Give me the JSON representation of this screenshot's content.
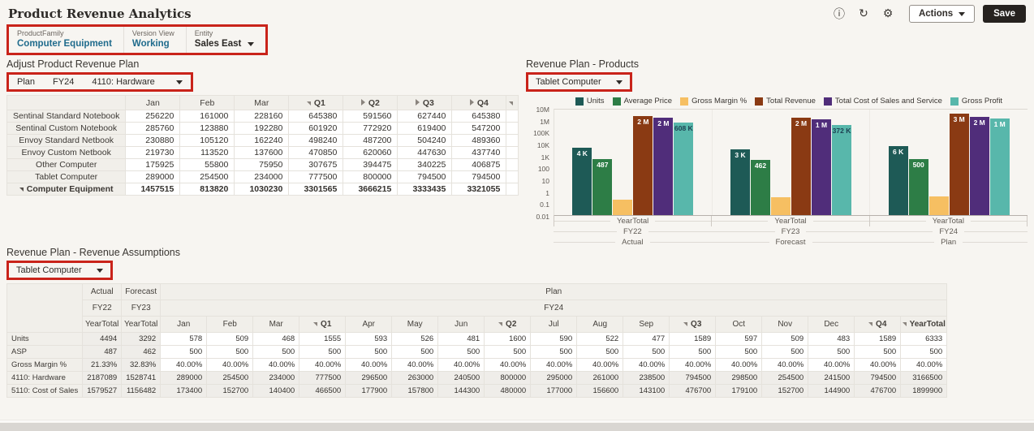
{
  "page": {
    "title": "Product Revenue Analytics"
  },
  "colors": {
    "annotation": "#c9231a",
    "pov_link": "#1f6b8c",
    "save_button_bg": "#26221f"
  },
  "header": {
    "actions_label": "Actions",
    "save_label": "Save",
    "icons": {
      "info": "ⓘ",
      "refresh": "↻",
      "settings": "⚙"
    }
  },
  "pov": {
    "items": [
      {
        "label": "ProductFamily",
        "value": "Computer Equipment",
        "caret": false,
        "style": "link"
      },
      {
        "label": "Version View",
        "value": "Working",
        "caret": false,
        "style": "link"
      },
      {
        "label": "Entity",
        "value": "Sales East",
        "caret": true,
        "style": "dark"
      }
    ]
  },
  "adjust_panel": {
    "title": "Adjust Product Revenue Plan",
    "pov_members": [
      "Plan",
      "FY24",
      "4110: Hardware"
    ],
    "columns": [
      "Jan",
      "Feb",
      "Mar",
      "Q1",
      "Q2",
      "Q3",
      "Q4"
    ],
    "column_states": [
      "",
      "",
      "",
      "expanded",
      "collapsed",
      "collapsed",
      "collapsed"
    ],
    "stub_state": "expanded",
    "rows": [
      {
        "label": "Sentinal Standard Notebook",
        "total": false,
        "values": [
          "256220",
          "161000",
          "228160",
          "645380",
          "591560",
          "627440",
          "645380"
        ]
      },
      {
        "label": "Sentinal Custom Notebook",
        "total": false,
        "values": [
          "285760",
          "123880",
          "192280",
          "601920",
          "772920",
          "619400",
          "547200"
        ]
      },
      {
        "label": "Envoy Standard Netbook",
        "total": false,
        "values": [
          "230880",
          "105120",
          "162240",
          "498240",
          "487200",
          "504240",
          "489360"
        ]
      },
      {
        "label": "Envoy Custom Netbook",
        "total": false,
        "values": [
          "219730",
          "113520",
          "137600",
          "470850",
          "620060",
          "447630",
          "437740"
        ]
      },
      {
        "label": "Other Computer",
        "total": false,
        "values": [
          "175925",
          "55800",
          "75950",
          "307675",
          "394475",
          "340225",
          "406875"
        ]
      },
      {
        "label": "Tablet Computer",
        "total": false,
        "values": [
          "289000",
          "254500",
          "234000",
          "777500",
          "800000",
          "794500",
          "794500"
        ]
      },
      {
        "label": "Computer Equipment",
        "total": true,
        "values": [
          "1457515",
          "813820",
          "1030230",
          "3301565",
          "3666215",
          "3333435",
          "3321055"
        ]
      }
    ]
  },
  "products_panel": {
    "title": "Revenue Plan - Products",
    "selector": "Tablet Computer"
  },
  "chart_data": {
    "type": "bar",
    "y_scale": "log",
    "ylim": [
      0.01,
      10000000
    ],
    "y_ticks": [
      "10M",
      "1M",
      "100K",
      "10K",
      "1K",
      "100",
      "10",
      "1",
      "0.1",
      "0.01"
    ],
    "grid": false,
    "legend_position": "top",
    "categories": [
      [
        "YearTotal",
        "FY22",
        "Actual"
      ],
      [
        "YearTotal",
        "FY23",
        "Forecast"
      ],
      [
        "YearTotal",
        "FY24",
        "Plan"
      ]
    ],
    "series": [
      {
        "name": "Units",
        "color": "#1e5a56",
        "values": [
          4494,
          3292,
          6333
        ],
        "labels": [
          "4 K",
          "3 K",
          "6 K"
        ],
        "label_style": [
          "light",
          "light",
          "light"
        ]
      },
      {
        "name": "Average Price",
        "color": "#2d7d46",
        "values": [
          487,
          462,
          500
        ],
        "labels": [
          "487",
          "462",
          "500"
        ],
        "label_style": [
          "light",
          "light",
          "light"
        ]
      },
      {
        "name": "Gross Margin %",
        "color": "#f6bf62",
        "values": [
          0.2133,
          0.3283,
          0.4
        ],
        "labels": [
          "",
          "",
          ""
        ],
        "label_style": [
          "light",
          "light",
          "light"
        ]
      },
      {
        "name": "Total Revenue",
        "color": "#8a3a13",
        "values": [
          2187089,
          1528741,
          3166500
        ],
        "labels": [
          "2 M",
          "2 M",
          "3 M"
        ],
        "label_style": [
          "light",
          "light",
          "light"
        ]
      },
      {
        "name": "Total Cost of Sales and Service",
        "color": "#502d7a",
        "values": [
          1579527,
          1156482,
          1899900
        ],
        "labels": [
          "2 M",
          "1 M",
          "2 M"
        ],
        "label_style": [
          "light",
          "light",
          "light"
        ]
      },
      {
        "name": "Gross Profit",
        "color": "#58b7ab",
        "values": [
          607562,
          372259,
          1266600
        ],
        "labels": [
          "608 K",
          "372 K",
          "1 M"
        ],
        "label_style": [
          "dark",
          "dark",
          "light"
        ]
      }
    ]
  },
  "assumptions_panel": {
    "title": "Revenue Plan - Revenue Assumptions",
    "selector": "Tablet Computer",
    "scenario_row": [
      {
        "label": "Actual",
        "span": 1
      },
      {
        "label": "Forecast",
        "span": 1
      },
      {
        "label": "Plan",
        "span": 17
      }
    ],
    "year_row": [
      {
        "label": "FY22",
        "span": 1
      },
      {
        "label": "FY23",
        "span": 1
      },
      {
        "label": "FY24",
        "span": 17
      }
    ],
    "period_columns": [
      "YearTotal",
      "YearTotal",
      "Jan",
      "Feb",
      "Mar",
      "Q1",
      "Apr",
      "May",
      "Jun",
      "Q2",
      "Jul",
      "Aug",
      "Sep",
      "Q3",
      "Oct",
      "Nov",
      "Dec",
      "Q4",
      "YearTotal"
    ],
    "period_states": [
      "",
      "",
      "",
      "",
      "",
      "expanded",
      "",
      "",
      "",
      "expanded",
      "",
      "",
      "",
      "expanded",
      "",
      "",
      "",
      "expanded",
      "expanded"
    ],
    "period_bold": [
      false,
      false,
      false,
      false,
      false,
      true,
      false,
      false,
      false,
      true,
      false,
      false,
      false,
      true,
      false,
      false,
      false,
      true,
      true
    ],
    "rows": [
      {
        "label": "Units",
        "readonly": false,
        "values": [
          "4494",
          "3292",
          "578",
          "509",
          "468",
          "1555",
          "593",
          "526",
          "481",
          "1600",
          "590",
          "522",
          "477",
          "1589",
          "597",
          "509",
          "483",
          "1589",
          "6333"
        ]
      },
      {
        "label": "ASP",
        "readonly": false,
        "values": [
          "487",
          "462",
          "500",
          "500",
          "500",
          "500",
          "500",
          "500",
          "500",
          "500",
          "500",
          "500",
          "500",
          "500",
          "500",
          "500",
          "500",
          "500",
          "500"
        ]
      },
      {
        "label": "Gross Margin %",
        "readonly": false,
        "values": [
          "21.33%",
          "32.83%",
          "40.00%",
          "40.00%",
          "40.00%",
          "40.00%",
          "40.00%",
          "40.00%",
          "40.00%",
          "40.00%",
          "40.00%",
          "40.00%",
          "40.00%",
          "40.00%",
          "40.00%",
          "40.00%",
          "40.00%",
          "40.00%",
          "40.00%"
        ]
      },
      {
        "label": "4110: Hardware",
        "readonly": true,
        "values": [
          "2187089",
          "1528741",
          "289000",
          "254500",
          "234000",
          "777500",
          "296500",
          "263000",
          "240500",
          "800000",
          "295000",
          "261000",
          "238500",
          "794500",
          "298500",
          "254500",
          "241500",
          "794500",
          "3166500"
        ]
      },
      {
        "label": "5110: Cost of Sales",
        "readonly": true,
        "values": [
          "1579527",
          "1156482",
          "173400",
          "152700",
          "140400",
          "466500",
          "177900",
          "157800",
          "144300",
          "480000",
          "177000",
          "156600",
          "143100",
          "476700",
          "179100",
          "152700",
          "144900",
          "476700",
          "1899900"
        ]
      }
    ]
  }
}
